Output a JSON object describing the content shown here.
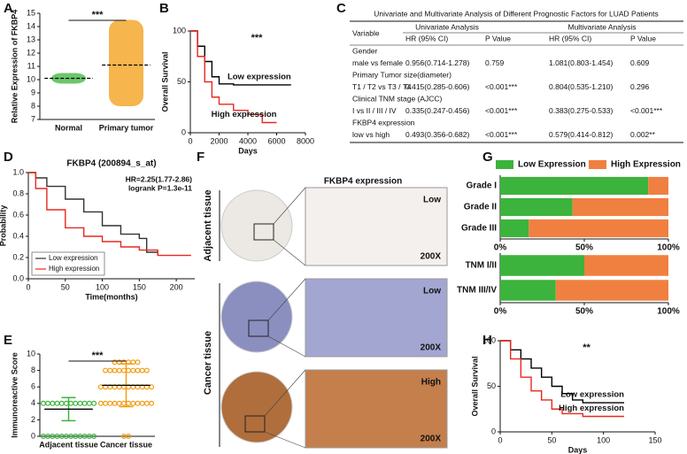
{
  "panel_labels": [
    "A",
    "B",
    "C",
    "D",
    "E",
    "F",
    "G",
    "H"
  ],
  "table": {
    "title": "Univariate and Multivariate Analysis of Different Prognostic Factors for LUAD Patients",
    "header_groups": [
      "Univariate Analysis",
      "Multivariate Analysis"
    ],
    "columns": [
      "Variable",
      "HR (95% CI)",
      "P Value",
      "HR (95% CI)",
      "P Value"
    ],
    "rows": [
      [
        "Gender"
      ],
      [
        "male vs female",
        "0.956(0.714-1.278)",
        "0.759",
        "1.081(0.803-1.454)",
        "0.609"
      ],
      [
        "Primary Tumor size(diameter)"
      ],
      [
        "T1 / T2 vs T3 / T4",
        "0.415(0.285-0.606)",
        "<0.001***",
        "0.804(0.535-1.210)",
        "0.296"
      ],
      [
        "Clinical TNM stage (AJCC)"
      ],
      [
        "I vs II / III / IV",
        "0.335(0.247-0.456)",
        "<0.001***",
        "0.383(0.275-0.533)",
        "<0.001***"
      ],
      [
        "FKBP4 expression"
      ],
      [
        "low vs high",
        "0.493(0.356-0.682)",
        "<0.001***",
        "0.579(0.414-0.812)",
        "0.002**"
      ]
    ],
    "highlight_color": "#e8281e"
  },
  "images": {
    "title": "FKBP4 expression",
    "groups": [
      "Adjacent tissue",
      "Cancer tissue"
    ],
    "grades": [
      "Low",
      "Low",
      "High"
    ],
    "magnification": "200X"
  },
  "chart_data": [
    {
      "type": "dot",
      "y_label": "Relative Expression of FKBP4",
      "categories": [
        "Normal",
        "Primary tumor"
      ],
      "values": [
        10.1,
        11.1
      ],
      "min": [
        9.7,
        8.0
      ],
      "max": [
        10.5,
        14.5
      ],
      "colors": [
        "#3cb33c",
        "#f39c12"
      ],
      "ylim": [
        7,
        15
      ],
      "yticks": [
        7,
        8,
        9,
        10,
        11,
        12,
        13,
        14,
        15
      ],
      "annotation": "***"
    },
    {
      "type": "survival",
      "x_label": "Days",
      "y_label": "Overall Survival",
      "legend": "inline",
      "annotation": "***",
      "xlim": [
        0,
        8000
      ],
      "xticks": [
        0,
        2000,
        4000,
        6000,
        8000
      ],
      "ylim": [
        0,
        100
      ],
      "yticks": [
        0,
        50,
        100
      ],
      "series": [
        {
          "name": "Low expression",
          "color": "#000000",
          "x": [
            0,
            500,
            1000,
            1500,
            2000,
            3000,
            4000,
            5000,
            6000,
            7000
          ],
          "values": [
            100,
            85,
            70,
            55,
            48,
            47,
            47,
            47,
            47,
            47
          ]
        },
        {
          "name": "High expression",
          "color": "#e8281e",
          "x": [
            0,
            500,
            1000,
            1500,
            2000,
            3000,
            4000,
            5000,
            6000
          ],
          "values": [
            100,
            75,
            50,
            35,
            28,
            22,
            18,
            10,
            10
          ]
        }
      ]
    },
    {
      "type": "survival",
      "title": "FKBP4 (200894_s_at)",
      "x_label": "Time(months)",
      "y_label": "Probability",
      "legend": "lower left",
      "annotations": [
        "HR=2.25(1.77-2.86)",
        "logrank P=1.3e-11"
      ],
      "xlim": [
        0,
        225
      ],
      "xticks": [
        0,
        50,
        100,
        150,
        200
      ],
      "ylim": [
        0,
        1
      ],
      "yticks": [
        {
          "value": 0,
          "label": "0.0"
        },
        0.2,
        0.4,
        0.6,
        0.8,
        {
          "value": 1,
          "label": "1.0"
        }
      ],
      "series": [
        {
          "name": "Low expression",
          "color": "#333333",
          "x": [
            0,
            10,
            25,
            50,
            75,
            100,
            125,
            150,
            160,
            175
          ],
          "values": [
            1,
            0.95,
            0.87,
            0.75,
            0.63,
            0.5,
            0.42,
            0.38,
            0.25,
            0.22
          ]
        },
        {
          "name": "High expression",
          "color": "#e8281e",
          "x": [
            0,
            10,
            25,
            50,
            75,
            100,
            125,
            150,
            175,
            220
          ],
          "values": [
            1,
            0.85,
            0.65,
            0.48,
            0.4,
            0.35,
            0.3,
            0.27,
            0.22,
            0.22
          ]
        }
      ]
    },
    {
      "type": "dot",
      "y_label": "Immunoreactive Score",
      "categories": [
        "Adjacent tissue",
        "Cancer tissue"
      ],
      "values": [
        3.3,
        6.2
      ],
      "errors": [
        1.4,
        2.6
      ],
      "colors": [
        "#3cb33c",
        "#f39c12"
      ],
      "points": [
        [
          0,
          0,
          0,
          0,
          0,
          0,
          0,
          0,
          0,
          0,
          0,
          0,
          4,
          4,
          4,
          4,
          4,
          4,
          4,
          4,
          4,
          4,
          4,
          4
        ],
        [
          9,
          9,
          9,
          9,
          9,
          9,
          8,
          8,
          8,
          8,
          8,
          8,
          8,
          8,
          8,
          8,
          6,
          6,
          6,
          6,
          6,
          6,
          6,
          6,
          6,
          6,
          6,
          6,
          4,
          4,
          4,
          4,
          4,
          4,
          4,
          4,
          4,
          4,
          4,
          4,
          0,
          0
        ]
      ],
      "ylim": [
        0,
        10
      ],
      "yticks": [
        0,
        2,
        4,
        6,
        8,
        10
      ],
      "annotation": "***"
    },
    {
      "type": "barh-stacked",
      "legend": "top",
      "categories": [
        "Grade I",
        "Grade II",
        "Grade III"
      ],
      "xlim": [
        0,
        100
      ],
      "xticks": [
        {
          "value": 0,
          "label": "0%"
        },
        {
          "value": 50,
          "label": "50%"
        },
        {
          "value": 100,
          "label": "100%"
        }
      ],
      "series": [
        {
          "name": "Low Expression",
          "color": "#3cb33c",
          "values": [
            88,
            43,
            17
          ]
        },
        {
          "name": "High Expression",
          "color": "#f08040",
          "values": [
            12,
            57,
            83
          ]
        }
      ]
    },
    {
      "type": "barh-stacked",
      "categories": [
        "TNM  I/II",
        "TNM III/IV"
      ],
      "xlim": [
        0,
        100
      ],
      "xticks": [
        {
          "value": 0,
          "label": "0%"
        },
        {
          "value": 50,
          "label": "50%"
        },
        {
          "value": 100,
          "label": "100%"
        }
      ],
      "series": [
        {
          "color": "#3cb33c",
          "values": [
            50,
            33
          ]
        },
        {
          "color": "#f08040",
          "values": [
            50,
            67
          ]
        }
      ]
    },
    {
      "type": "survival",
      "x_label": "Days",
      "y_label": "Overall Survival",
      "legend": "inline",
      "annotation": "**",
      "xlim": [
        0,
        150
      ],
      "xticks": [
        0,
        50,
        100,
        150
      ],
      "ylim": [
        0,
        100
      ],
      "yticks": [
        0,
        50,
        100
      ],
      "series": [
        {
          "name": "Low expression",
          "color": "#000000",
          "x": [
            0,
            10,
            20,
            30,
            40,
            50,
            60,
            70,
            80,
            100,
            120
          ],
          "values": [
            100,
            90,
            80,
            70,
            60,
            50,
            42,
            35,
            32,
            32,
            32
          ]
        },
        {
          "name": "High expression",
          "color": "#e8281e",
          "x": [
            0,
            10,
            20,
            30,
            40,
            50,
            60,
            80,
            100,
            120
          ],
          "values": [
            100,
            80,
            60,
            45,
            35,
            25,
            20,
            17,
            17,
            17
          ]
        }
      ]
    }
  ]
}
